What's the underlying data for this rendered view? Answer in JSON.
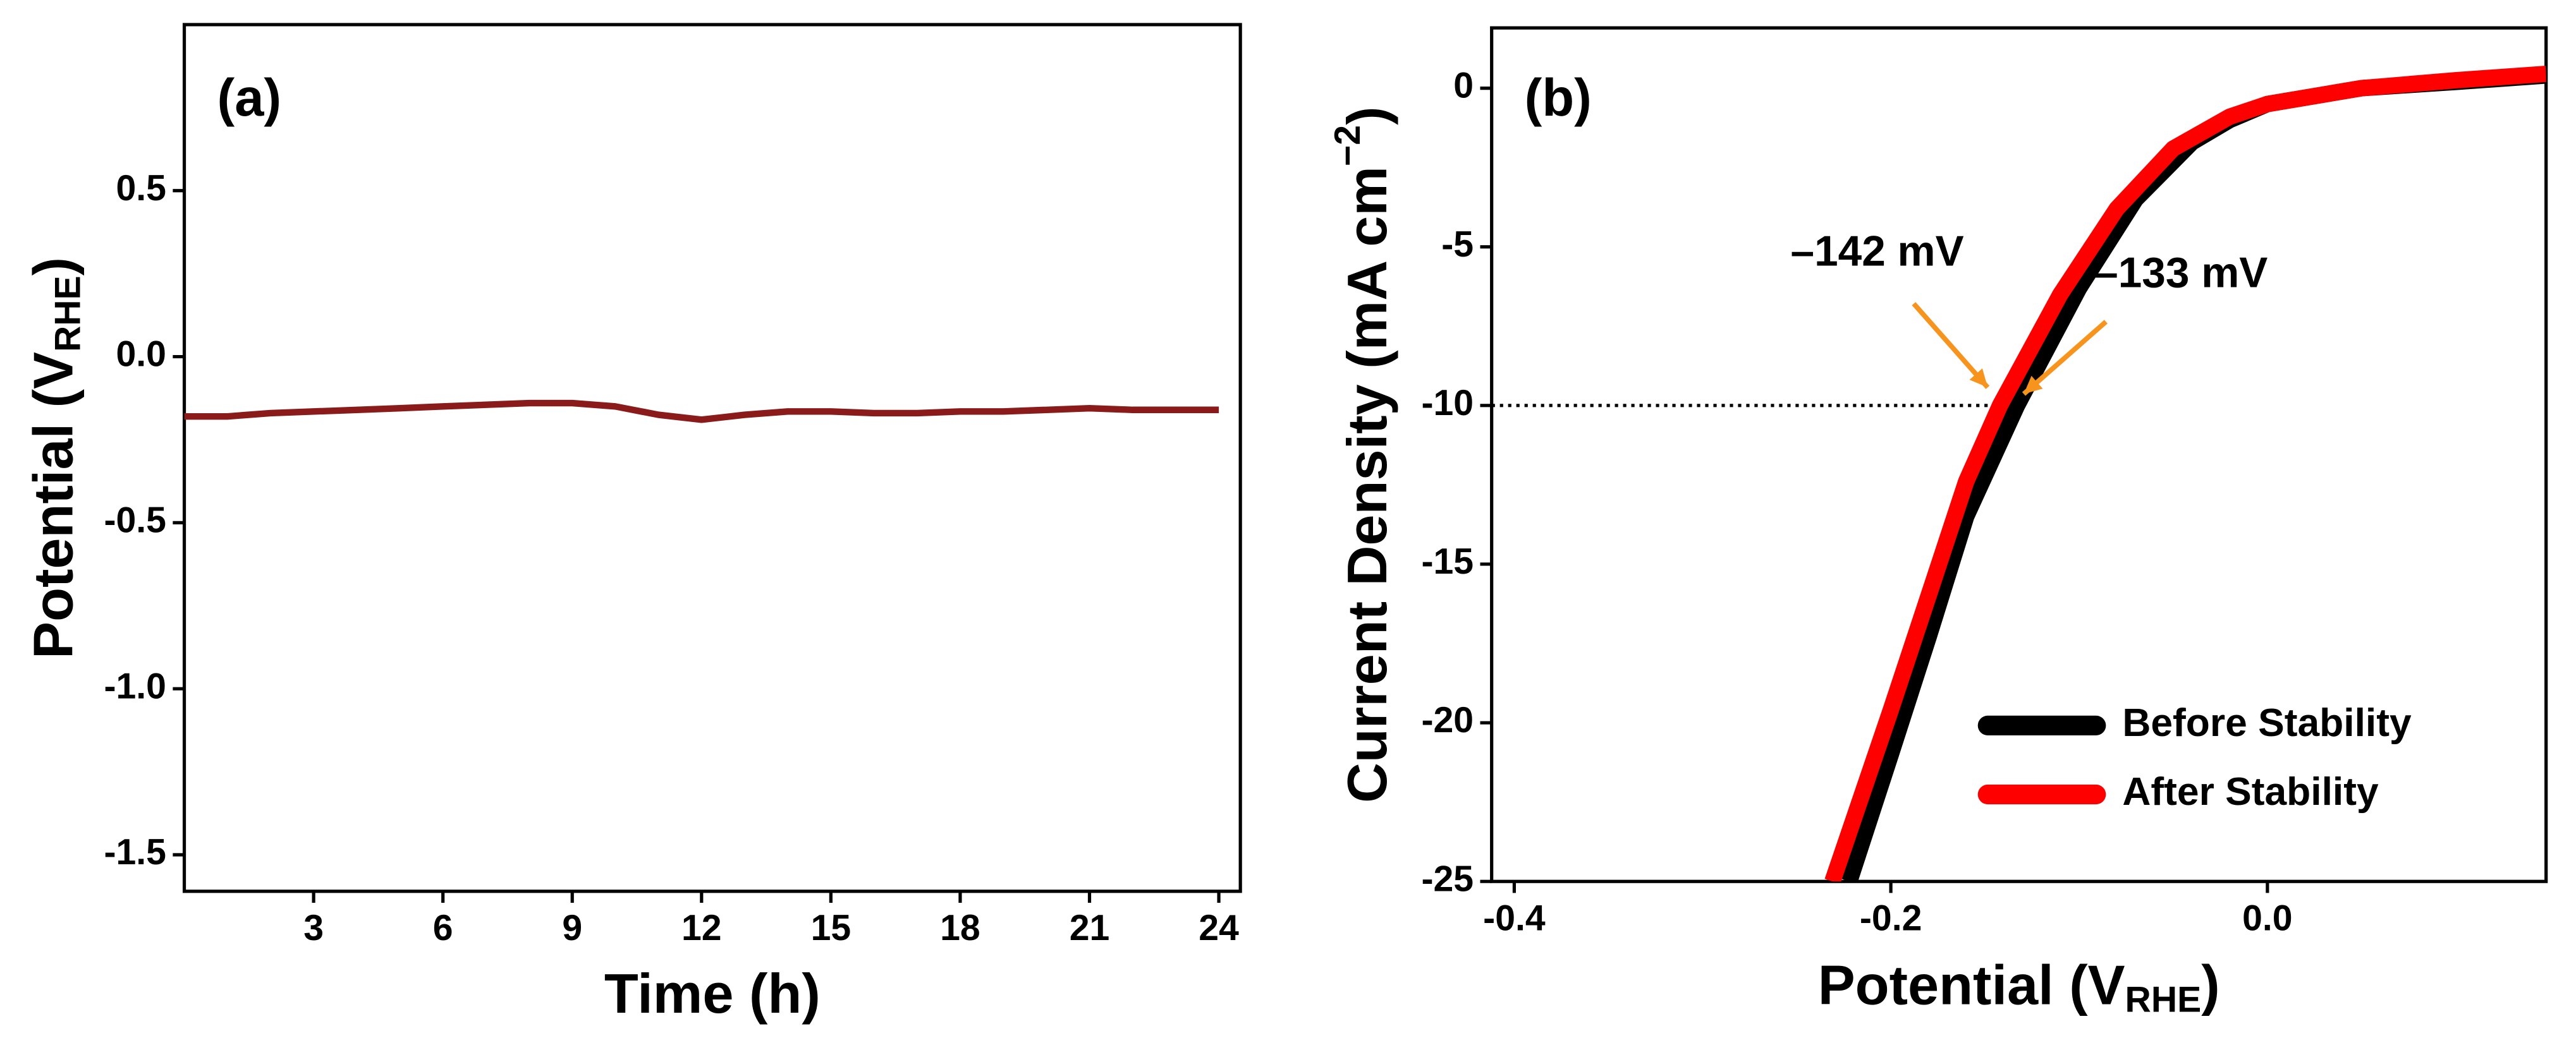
{
  "chart_data": [
    {
      "type": "line",
      "label": "(a)",
      "x_label": "Time (h)",
      "y_label": [
        "Potential (V",
        "RHE",
        ")"
      ],
      "y_label_script": "sub",
      "x": [
        0,
        1,
        2,
        3,
        4,
        5,
        6,
        7,
        8,
        9,
        10,
        11,
        12,
        13,
        14,
        15,
        16,
        17,
        18,
        19,
        20,
        21,
        22,
        23,
        24
      ],
      "series": [
        {
          "name": "Potential",
          "color": "#8b1a1a",
          "values": [
            -0.18,
            -0.18,
            -0.17,
            -0.165,
            -0.16,
            -0.155,
            -0.15,
            -0.145,
            -0.14,
            -0.14,
            -0.15,
            -0.175,
            -0.19,
            -0.175,
            -0.165,
            -0.165,
            -0.17,
            -0.17,
            -0.165,
            -0.165,
            -0.16,
            -0.155,
            -0.16,
            -0.16,
            -0.16
          ]
        }
      ],
      "xlim": [
        0,
        24.5
      ],
      "xticks": [
        3,
        6,
        9,
        12,
        15,
        18,
        21,
        24
      ],
      "ylim": [
        -1.61,
        1.0
      ],
      "yticks": [
        0.5,
        {
          "value": 0,
          "label": "0.0"
        },
        -0.5,
        {
          "value": -1,
          "label": "-1.0"
        },
        -1.5
      ],
      "legend": false
    },
    {
      "type": "line",
      "label": "(b)",
      "x_label": [
        "Potential (V",
        "RHE",
        ")"
      ],
      "x_label_script": "sub",
      "y_label": [
        "Current Density (mA cm",
        "−2",
        ")"
      ],
      "y_label_script": "sup",
      "series": [
        {
          "name": "Before Stability",
          "color": "#000000",
          "x": [
            -0.222,
            -0.2,
            -0.18,
            -0.16,
            -0.133,
            -0.1,
            -0.07,
            -0.04,
            -0.02,
            0,
            0.05,
            0.1,
            0.148
          ],
          "values": [
            -25,
            -21,
            -17.3,
            -13.5,
            -10,
            -6.3,
            -3.5,
            -1.7,
            -1.0,
            -0.5,
            0,
            0.2,
            0.4
          ]
        },
        {
          "name": "After Stability",
          "color": "#ff0000",
          "x": [
            -0.231,
            -0.2,
            -0.18,
            -0.16,
            -0.142,
            -0.11,
            -0.08,
            -0.05,
            -0.02,
            0,
            0.05,
            0.1,
            0.148
          ],
          "values": [
            -25,
            -19.6,
            -16,
            -12.4,
            -10,
            -6.5,
            -3.8,
            -1.9,
            -0.9,
            -0.5,
            0,
            0.25,
            0.45
          ]
        }
      ],
      "hline": -10,
      "annotations": [
        {
          "text": "–142 mV",
          "color": "#ff0000"
        },
        {
          "text": "–133 mV",
          "color": "#000000"
        }
      ],
      "xlim": [
        -0.412,
        0.148
      ],
      "xticks": [
        {
          "value": -0.4,
          "label": "-0.4"
        },
        {
          "value": -0.2,
          "label": "-0.2"
        },
        {
          "value": 0,
          "label": "0.0"
        }
      ],
      "ylim": [
        -25,
        1.9
      ],
      "yticks": [
        0,
        -5,
        -10,
        -15,
        -20,
        -25
      ],
      "legend": "lower right"
    }
  ]
}
